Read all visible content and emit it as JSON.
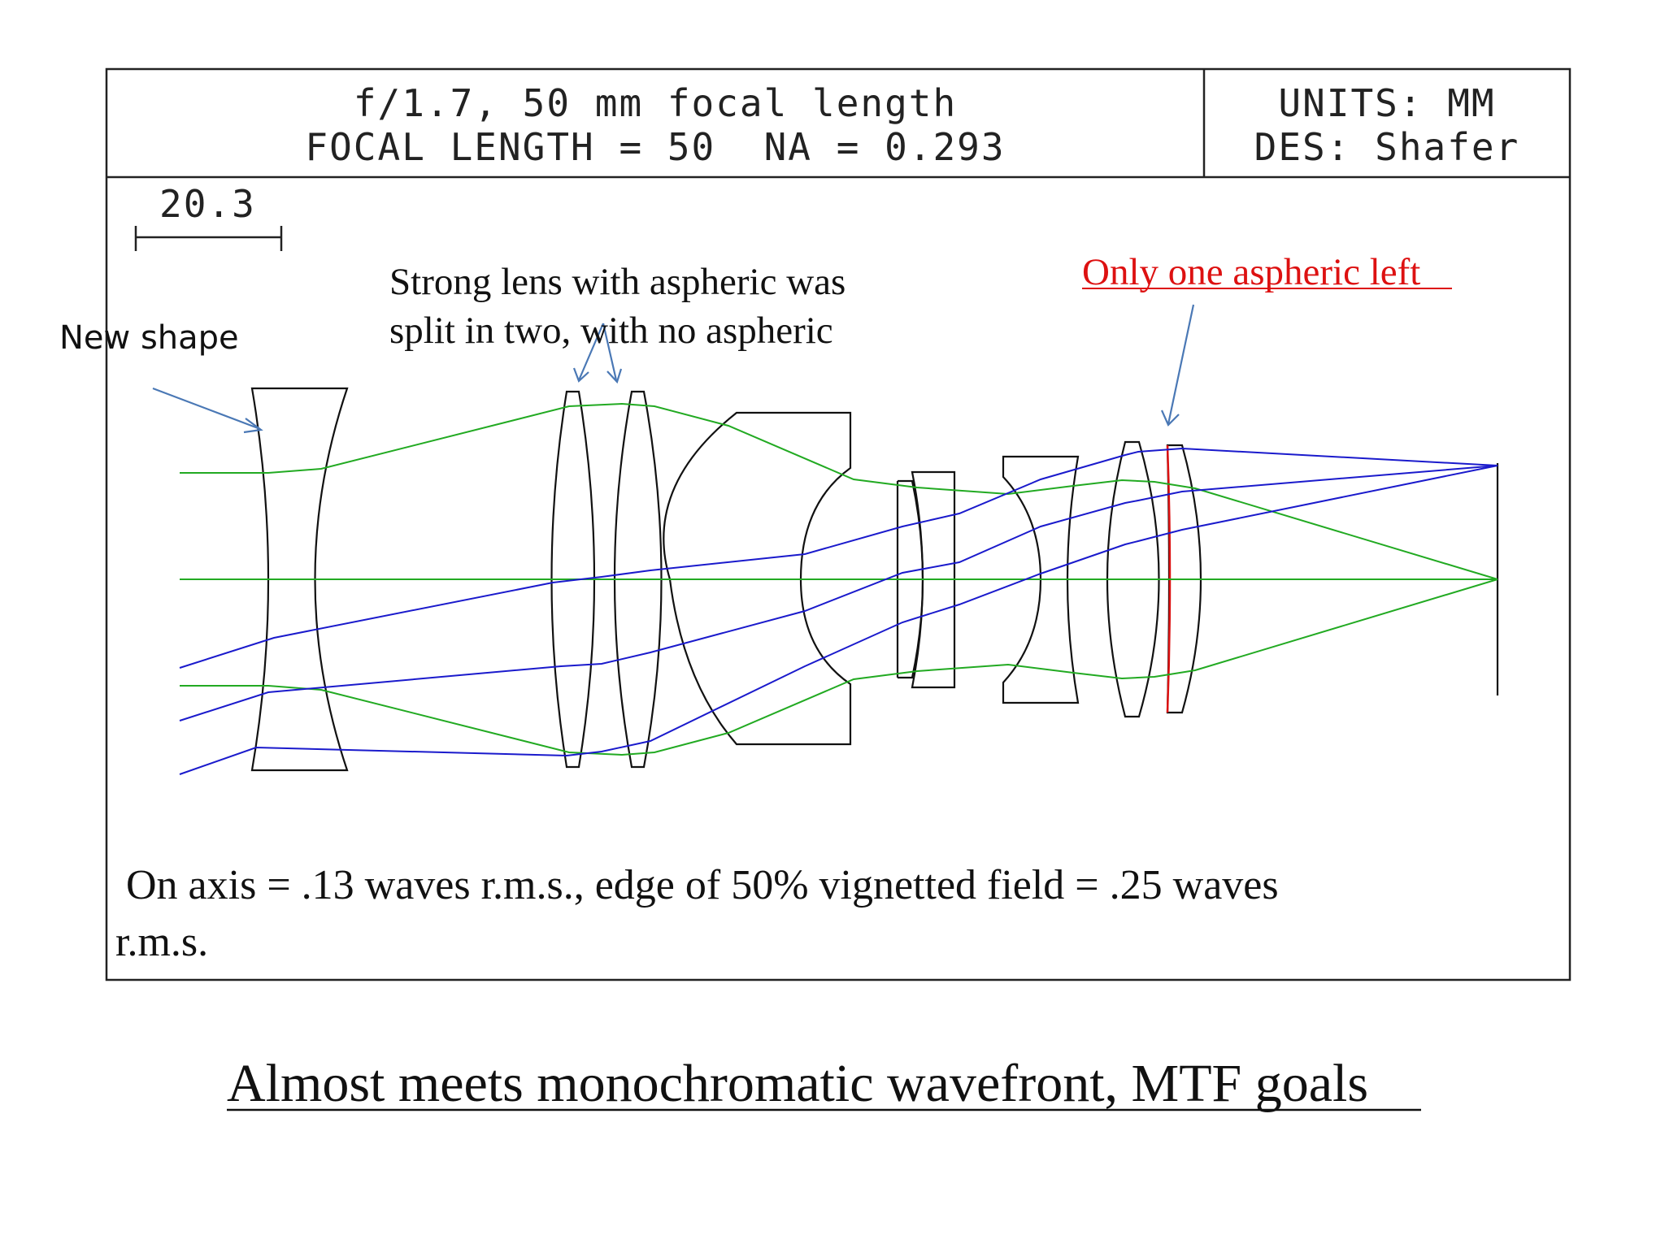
{
  "header": {
    "title_line1": "f/1.7, 50 mm focal length",
    "title_line2": "FOCAL LENGTH = 50  NA = 0.293",
    "units": "UNITS: MM",
    "designer": "DES: Shafer"
  },
  "scale_bar": {
    "label": "20.3"
  },
  "annotations": {
    "new_shape": "New shape",
    "split_lens_line1": "Strong lens with aspheric was",
    "split_lens_line2": "split in two, with no aspheric",
    "one_aspheric": "Only one aspheric left",
    "performance_line1": " On axis = .13 waves r.m.s., edge of 50% vignetted field = .25 waves",
    "performance_line2": "r.m.s."
  },
  "caption": "Almost meets monochromatic wavefront, MTF goals ",
  "colors": {
    "marginal_rays": "#22aa22",
    "chief_rays": "#1a1acc",
    "aspheric_surface": "#dd1111",
    "annotation_arrow": "#4a78b5",
    "highlight_text": "#dd1111"
  }
}
